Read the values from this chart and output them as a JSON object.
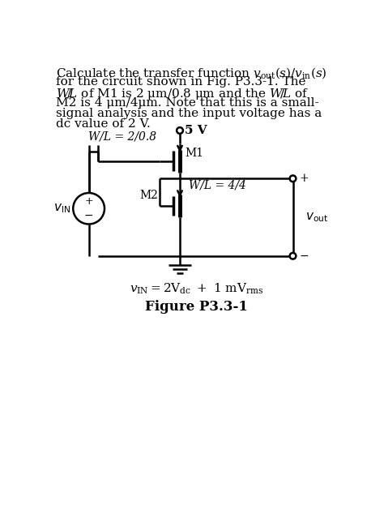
{
  "figure_label": "Figure P3.3-1",
  "vdd_label": "5 V",
  "wl_m1_label": "W/L = 2/0.8",
  "wl_m2_label": "W/L = 4/4",
  "m1_label": "M1",
  "m2_label": "M2",
  "vin_label": "$v_{\\mathrm{IN}}$",
  "vout_label": "$v_{\\mathrm{out}}$",
  "plus_sign": "+",
  "minus_sign": "−",
  "vin_eq_a": "$v_{\\mathrm{IN}} = 2\\mathrm{V}_{\\mathrm{dc}}$",
  "vin_eq_b": "$+ \\ 1 \\ \\mathrm{mV}_{\\mathrm{rms}}$",
  "bg_color": "#ffffff",
  "line_color": "#000000",
  "lw": 1.8,
  "text_lines": [
    "Calculate the transfer function $v_{\\mathrm{out}}(s)/v_{\\mathrm{in}}(s)$",
    "for the circuit shown in Fig. P3.3-1. The",
    "$W\\!/\\!L$ of M1 is 2 μm/0.8 μm and the $W\\!/\\!L$ of",
    "M2 is 4 μm/4μm. Note that this is a small-",
    "signal analysis and the input voltage has a",
    "dc value of 2 V."
  ]
}
